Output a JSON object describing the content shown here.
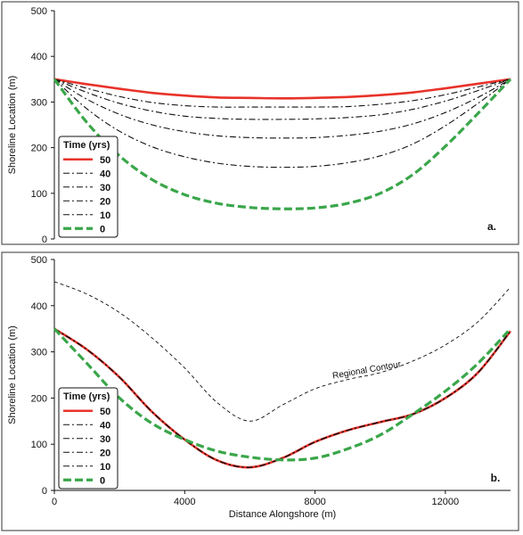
{
  "figure": {
    "colors": {
      "red": "#e8332a",
      "green": "#3aa64a",
      "black": "#111111",
      "frame": "#333333"
    }
  },
  "chart_data": [
    {
      "type": "line",
      "panel_label": "a.",
      "ylabel": "Shoreline Location (m)",
      "xlim": [
        0,
        14000
      ],
      "ylim": [
        0,
        500
      ],
      "yticks": [
        0,
        100,
        200,
        300,
        400,
        500
      ],
      "xticks": [],
      "grid": false,
      "legend": {
        "title": "Time (yrs)",
        "position": "bottom-left"
      },
      "series": [
        {
          "name": "50",
          "style": "solid-red",
          "x": [
            0,
            1000,
            2000,
            3000,
            4000,
            5000,
            6000,
            7000,
            8000,
            9000,
            10000,
            11000,
            12000,
            13000,
            14000
          ],
          "y": [
            350,
            339,
            329,
            320,
            314,
            310,
            309,
            308,
            309,
            311,
            315,
            321,
            330,
            340,
            350
          ]
        },
        {
          "name": "40",
          "style": "dash-dot-black",
          "x": [
            0,
            1000,
            2000,
            3000,
            4000,
            5000,
            6000,
            7000,
            8000,
            9000,
            10000,
            11000,
            12000,
            13000,
            14000
          ],
          "y": [
            350,
            330,
            312,
            299,
            292,
            289,
            289,
            289,
            289,
            290,
            295,
            303,
            316,
            333,
            350
          ]
        },
        {
          "name": "30",
          "style": "dash-dot-black",
          "x": [
            0,
            1000,
            2000,
            3000,
            4000,
            5000,
            6000,
            7000,
            8000,
            9000,
            10000,
            11000,
            12000,
            13000,
            14000
          ],
          "y": [
            350,
            321,
            297,
            280,
            269,
            264,
            262,
            262,
            263,
            266,
            272,
            284,
            302,
            325,
            350
          ]
        },
        {
          "name": "20",
          "style": "dash-dot-black",
          "x": [
            0,
            1000,
            2000,
            3000,
            4000,
            5000,
            6000,
            7000,
            8000,
            9000,
            10000,
            11000,
            12000,
            13000,
            14000
          ],
          "y": [
            350,
            306,
            273,
            250,
            235,
            226,
            222,
            221,
            222,
            227,
            236,
            252,
            277,
            310,
            350
          ]
        },
        {
          "name": "10",
          "style": "dash-dot-black",
          "x": [
            0,
            1000,
            2000,
            3000,
            4000,
            5000,
            6000,
            7000,
            8000,
            9000,
            10000,
            11000,
            12000,
            13000,
            14000
          ],
          "y": [
            350,
            285,
            236,
            202,
            180,
            166,
            159,
            157,
            159,
            167,
            182,
            208,
            248,
            297,
            350
          ]
        },
        {
          "name": "0",
          "style": "dash-green",
          "x": [
            0,
            1000,
            2000,
            3000,
            4000,
            5000,
            6000,
            7000,
            8000,
            9000,
            10000,
            11000,
            12000,
            13000,
            14000
          ],
          "y": [
            350,
            255,
            182,
            130,
            97,
            78,
            69,
            66,
            68,
            78,
            100,
            141,
            203,
            275,
            350
          ]
        }
      ]
    },
    {
      "type": "line",
      "panel_label": "b.",
      "xlabel": "Distance Alongshore (m)",
      "ylabel": "Shoreline Location (m)",
      "xlim": [
        0,
        14000
      ],
      "ylim": [
        0,
        500
      ],
      "xticks": [
        0,
        4000,
        8000,
        12000
      ],
      "yticks": [
        0,
        100,
        200,
        300,
        400,
        500
      ],
      "grid": false,
      "legend": {
        "title": "Time (yrs)",
        "position": "bottom-left"
      },
      "annotation": {
        "text": "Regional Contour",
        "x": 9600,
        "y": 255,
        "rotation": -10
      },
      "series": [
        {
          "name": "Regional Contour",
          "style": "dash-black-thin",
          "x": [
            0,
            1000,
            2000,
            3000,
            4000,
            5000,
            6000,
            7000,
            8000,
            9000,
            10000,
            11000,
            12000,
            13000,
            14000
          ],
          "y": [
            452,
            425,
            385,
            330,
            265,
            190,
            150,
            185,
            220,
            240,
            255,
            280,
            315,
            365,
            440
          ]
        },
        {
          "name": "50",
          "style": "solid-red",
          "x": [
            0,
            1000,
            2000,
            3000,
            4000,
            5000,
            6000,
            7000,
            8000,
            9000,
            10000,
            11000,
            12000,
            13000,
            14000
          ],
          "y": [
            350,
            305,
            245,
            170,
            110,
            65,
            50,
            70,
            105,
            130,
            148,
            165,
            200,
            255,
            345
          ]
        },
        {
          "name": "40",
          "style": "dash-dot-black",
          "x": [
            0,
            1000,
            2000,
            3000,
            4000,
            5000,
            6000,
            7000,
            8000,
            9000,
            10000,
            11000,
            12000,
            13000,
            14000
          ],
          "y": [
            350,
            305,
            245,
            170,
            110,
            65,
            50,
            70,
            105,
            130,
            148,
            165,
            200,
            255,
            345
          ]
        },
        {
          "name": "30",
          "style": "dash-dot-black",
          "x": [
            0,
            1000,
            2000,
            3000,
            4000,
            5000,
            6000,
            7000,
            8000,
            9000,
            10000,
            11000,
            12000,
            13000,
            14000
          ],
          "y": [
            350,
            305,
            245,
            170,
            110,
            65,
            50,
            70,
            105,
            130,
            148,
            165,
            200,
            255,
            345
          ]
        },
        {
          "name": "20",
          "style": "dash-dot-black",
          "x": [
            0,
            1000,
            2000,
            3000,
            4000,
            5000,
            6000,
            7000,
            8000,
            9000,
            10000,
            11000,
            12000,
            13000,
            14000
          ],
          "y": [
            350,
            305,
            245,
            170,
            110,
            65,
            50,
            70,
            105,
            130,
            148,
            165,
            200,
            255,
            345
          ]
        },
        {
          "name": "10",
          "style": "dash-dot-black",
          "x": [
            0,
            1000,
            2000,
            3000,
            4000,
            5000,
            6000,
            7000,
            8000,
            9000,
            10000,
            11000,
            12000,
            13000,
            14000
          ],
          "y": [
            350,
            305,
            245,
            170,
            110,
            65,
            50,
            70,
            105,
            130,
            148,
            165,
            200,
            255,
            345
          ]
        },
        {
          "name": "0",
          "style": "dash-green",
          "x": [
            0,
            1000,
            2000,
            3000,
            4000,
            5000,
            6000,
            7000,
            8000,
            9000,
            10000,
            11000,
            12000,
            13000,
            14000
          ],
          "y": [
            350,
            275,
            200,
            145,
            110,
            85,
            72,
            66,
            70,
            90,
            120,
            165,
            215,
            275,
            350
          ]
        }
      ]
    }
  ]
}
